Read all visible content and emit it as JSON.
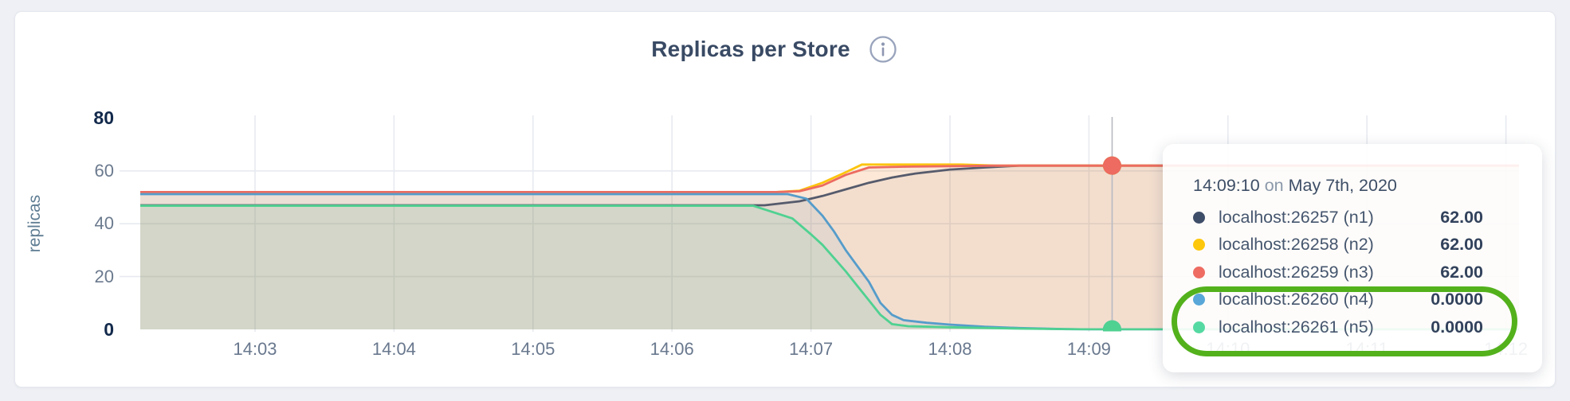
{
  "header": {
    "title": "Replicas per Store"
  },
  "colors": {
    "page_background": "#eef0f5",
    "card_background": "#ffffff",
    "grid": "#e7eaf0",
    "hover_line": "#b7bac2",
    "annotation_green": "#53b11c",
    "title_text": "#394a64",
    "axis_text": "#69788e",
    "axis_text_bold": "#12294b"
  },
  "chart_data": {
    "type": "area",
    "title": "Replicas per Store",
    "xlabel": "",
    "ylabel": "replicas",
    "ylim": [
      0,
      80
    ],
    "yticks": [
      80,
      60,
      40,
      20,
      0
    ],
    "xticks": [
      "14:03",
      "14:04",
      "14:05",
      "14:06",
      "14:07",
      "14:08",
      "14:09",
      "14:10",
      "14:11",
      "14:12"
    ],
    "x_start": "14:02:08",
    "x_end": "14:12:06",
    "grid": true,
    "legend_position": "hover-tooltip",
    "series": [
      {
        "name": "localhost:26257 (n1)",
        "node": "n1",
        "color": "#565b6c",
        "fill_opacity": 0.07,
        "points": [
          [
            "14:02:08",
            47
          ],
          [
            "14:06:40",
            47
          ],
          [
            "14:06:55",
            48.5
          ],
          [
            "14:07:05",
            50.5
          ],
          [
            "14:07:15",
            53
          ],
          [
            "14:07:25",
            55.5
          ],
          [
            "14:07:35",
            57.5
          ],
          [
            "14:07:45",
            59
          ],
          [
            "14:08:00",
            60.5
          ],
          [
            "14:08:15",
            61.3
          ],
          [
            "14:08:30",
            62
          ],
          [
            "14:12:06",
            62
          ]
        ]
      },
      {
        "name": "localhost:26258 (n2)",
        "node": "n2",
        "color": "#fcc40e",
        "fill_opacity": 0.1,
        "points": [
          [
            "14:02:08",
            52
          ],
          [
            "14:06:45",
            52
          ],
          [
            "14:06:55",
            52.5
          ],
          [
            "14:07:05",
            55.5
          ],
          [
            "14:07:15",
            59.5
          ],
          [
            "14:07:22",
            62.4
          ],
          [
            "14:08:05",
            62.4
          ],
          [
            "14:08:20",
            62
          ],
          [
            "14:12:06",
            62
          ]
        ]
      },
      {
        "name": "localhost:26259 (n3)",
        "node": "n3",
        "color": "#ed6b60",
        "fill_opacity": 0.12,
        "points": [
          [
            "14:02:08",
            52
          ],
          [
            "14:06:45",
            52
          ],
          [
            "14:06:55",
            52.3
          ],
          [
            "14:07:05",
            54.5
          ],
          [
            "14:07:15",
            58.5
          ],
          [
            "14:07:25",
            61.3
          ],
          [
            "14:07:40",
            61.6
          ],
          [
            "14:08:20",
            62
          ],
          [
            "14:12:06",
            62
          ]
        ]
      },
      {
        "name": "localhost:26260 (n4)",
        "node": "n4",
        "color": "#559cca",
        "fill_opacity": 0.1,
        "points": [
          [
            "14:02:08",
            51.2
          ],
          [
            "14:06:50",
            51.2
          ],
          [
            "14:06:58",
            49.5
          ],
          [
            "14:07:05",
            43
          ],
          [
            "14:07:10",
            37
          ],
          [
            "14:07:15",
            30
          ],
          [
            "14:07:20",
            24
          ],
          [
            "14:07:25",
            18
          ],
          [
            "14:07:30",
            10
          ],
          [
            "14:07:35",
            5.5
          ],
          [
            "14:07:40",
            3.5
          ],
          [
            "14:07:50",
            2.5
          ],
          [
            "14:08:00",
            1.8
          ],
          [
            "14:08:15",
            1
          ],
          [
            "14:08:30",
            0.5
          ],
          [
            "14:08:50",
            0.1
          ],
          [
            "14:09:00",
            0
          ],
          [
            "14:12:06",
            0
          ]
        ]
      },
      {
        "name": "localhost:26261 (n5)",
        "node": "n5",
        "color": "#4fd191",
        "fill_opacity": 0.1,
        "points": [
          [
            "14:02:08",
            46.8
          ],
          [
            "14:06:35",
            46.8
          ],
          [
            "14:06:45",
            44
          ],
          [
            "14:06:52",
            42
          ],
          [
            "14:07:00",
            36
          ],
          [
            "14:07:05",
            32
          ],
          [
            "14:07:10",
            27
          ],
          [
            "14:07:15",
            22
          ],
          [
            "14:07:20",
            16.5
          ],
          [
            "14:07:25",
            11
          ],
          [
            "14:07:30",
            5.5
          ],
          [
            "14:07:35",
            2
          ],
          [
            "14:07:42",
            1.2
          ],
          [
            "14:08:00",
            0.8
          ],
          [
            "14:08:30",
            0.3
          ],
          [
            "14:09:00",
            0
          ],
          [
            "14:12:06",
            0
          ]
        ]
      }
    ],
    "hover": {
      "time": "14:09:10",
      "values": [
        62,
        62,
        62,
        0,
        0
      ]
    }
  },
  "tooltip": {
    "time": "14:09:10",
    "on_word": "on",
    "date": "May 7th, 2020",
    "rows": [
      {
        "dot_color": "#3e4d68",
        "label": "localhost:26257 (n1)",
        "value": "62.00"
      },
      {
        "dot_color": "#fdc70c",
        "label": "localhost:26258 (n2)",
        "value": "62.00"
      },
      {
        "dot_color": "#ee6c62",
        "label": "localhost:26259 (n3)",
        "value": "62.00"
      },
      {
        "dot_color": "#58a7d8",
        "label": "localhost:26260 (n4)",
        "value": "0.0000"
      },
      {
        "dot_color": "#55d9a2",
        "label": "localhost:26261 (n5)",
        "value": "0.0000"
      }
    ],
    "annotation": {
      "shape": "green-oval",
      "around": [
        "localhost:26260 (n4)",
        "localhost:26261 (n5)"
      ],
      "color": "#53b11c"
    }
  }
}
